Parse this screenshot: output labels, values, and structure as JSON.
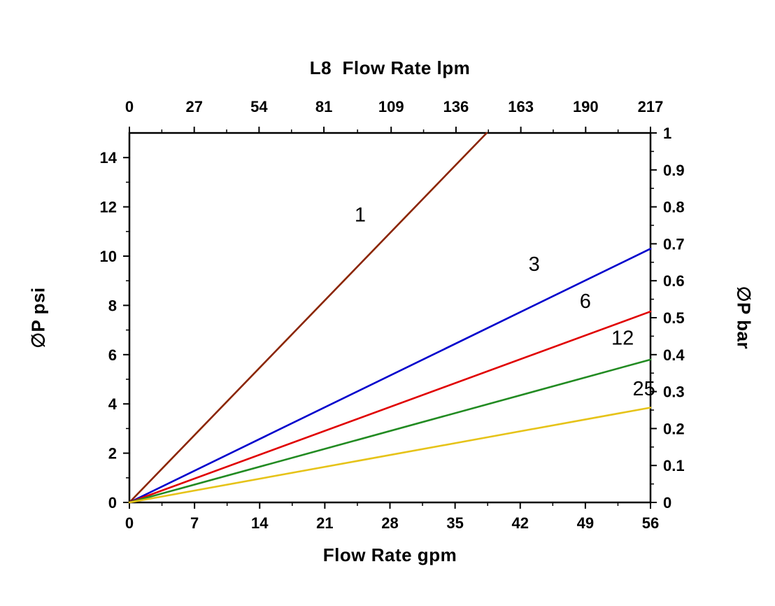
{
  "chart_data": {
    "type": "line",
    "title_top": "L8  Flow Rate lpm",
    "xlabel_bottom": "Flow Rate gpm",
    "ylabel_left": "∅P psi",
    "ylabel_right": "∅P bar",
    "grid": false,
    "legend": "inline-labels",
    "x_bottom": {
      "min": 0,
      "max": 56,
      "ticks": [
        0,
        7,
        14,
        21,
        28,
        35,
        42,
        49,
        56
      ]
    },
    "x_top": {
      "min": 0,
      "max": 217,
      "ticks": [
        0,
        27,
        54,
        81,
        109,
        136,
        163,
        190,
        217
      ]
    },
    "y_left": {
      "min": 0,
      "max": 15,
      "ticks": [
        0,
        2,
        4,
        6,
        8,
        10,
        12,
        14
      ]
    },
    "y_right": {
      "min": 0,
      "max": 1,
      "ticks": [
        0,
        0.1,
        0.2,
        0.3,
        0.4,
        0.5,
        0.6,
        0.7,
        0.8,
        0.9,
        1
      ],
      "tick_labels": [
        "0",
        "0.1",
        "0.2",
        "0.3",
        "0.4",
        "0.5",
        "0.6",
        "0.7",
        "0.8",
        "0.9",
        "1"
      ]
    },
    "series": [
      {
        "name": "1",
        "color": "#8B2500",
        "points": [
          [
            0,
            0
          ],
          [
            38.4,
            15.0
          ]
        ],
        "label_at": [
          24.8,
          11.4
        ]
      },
      {
        "name": "3",
        "color": "#0000CC",
        "points": [
          [
            0,
            0
          ],
          [
            56,
            10.3
          ]
        ],
        "label_at": [
          43.5,
          9.4
        ]
      },
      {
        "name": "6",
        "color": "#E00000",
        "points": [
          [
            0,
            0
          ],
          [
            56,
            7.75
          ]
        ],
        "label_at": [
          49.0,
          7.9
        ]
      },
      {
        "name": "12",
        "color": "#228B22",
        "points": [
          [
            0,
            0
          ],
          [
            56,
            5.8
          ]
        ],
        "label_at": [
          53.0,
          6.4
        ]
      },
      {
        "name": "25",
        "color": "#E6C319",
        "points": [
          [
            0,
            0
          ],
          [
            56,
            3.85
          ]
        ],
        "label_at": [
          55.3,
          4.35
        ]
      }
    ]
  }
}
